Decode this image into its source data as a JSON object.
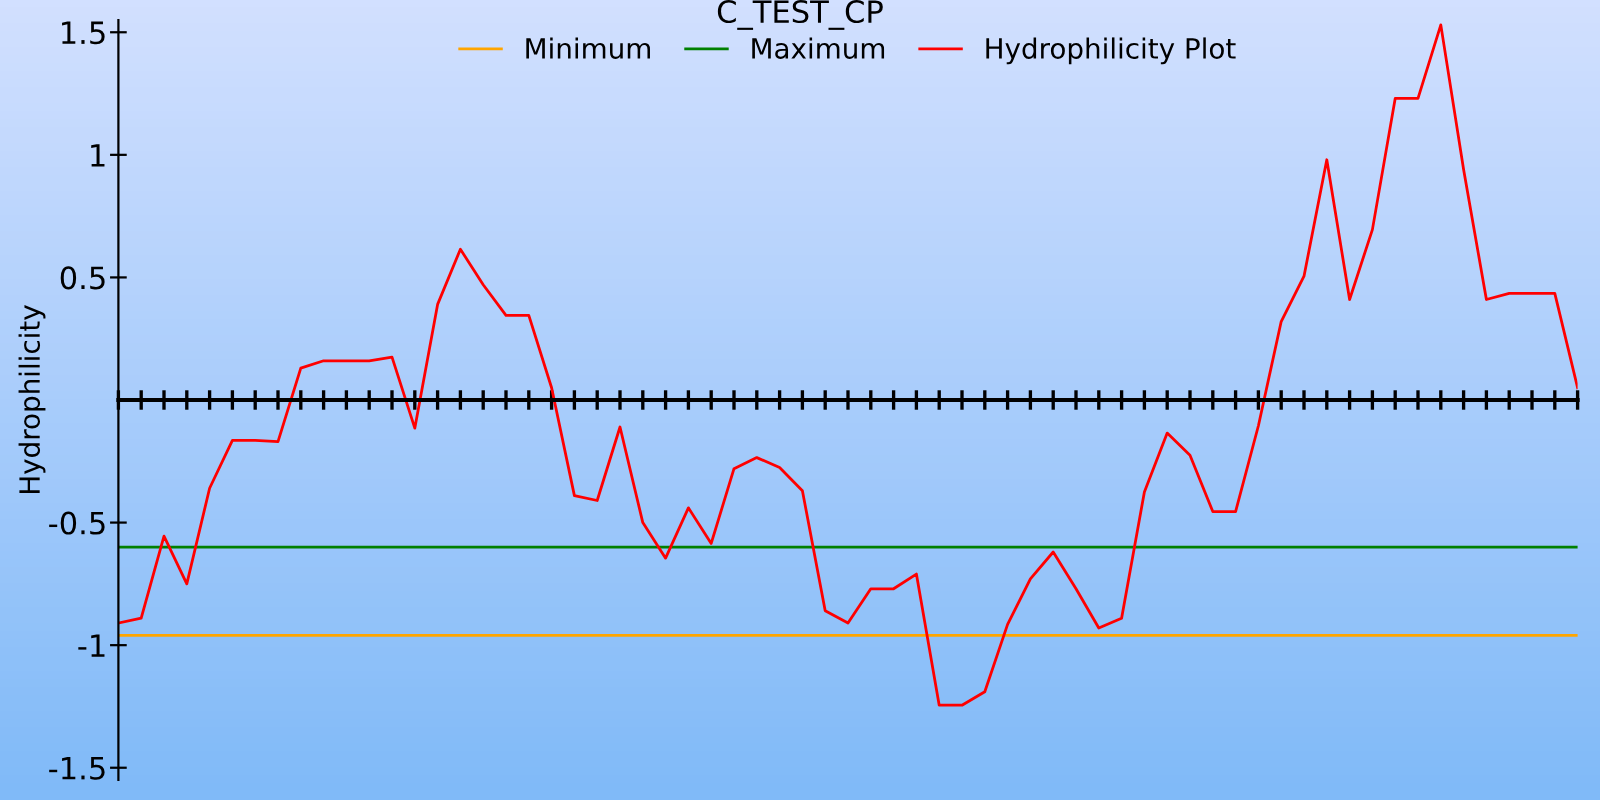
{
  "chart_data": {
    "type": "line",
    "title": "C_TEST_CP",
    "ylabel": "Hydrophilicity",
    "categories": [
      null,
      null,
      null,
      null,
      null,
      null,
      null,
      null,
      null,
      null,
      null,
      null,
      null,
      null,
      null,
      null,
      null,
      null,
      null,
      null,
      null,
      null,
      null,
      null,
      null,
      null,
      null,
      null,
      null,
      null,
      null,
      null,
      null,
      null,
      null,
      null,
      null,
      null,
      null,
      null,
      null,
      null,
      null,
      null,
      null,
      null,
      null,
      null,
      null,
      null,
      null,
      null,
      null,
      null,
      null,
      null,
      null,
      null,
      null,
      null,
      null,
      null,
      null,
      null,
      null
    ],
    "series": [
      {
        "name": "Minimum",
        "color": "#ffa500",
        "values": [
          -0.96,
          -0.96,
          -0.96,
          -0.96,
          -0.96,
          -0.96,
          -0.96,
          -0.96,
          -0.96,
          -0.96,
          -0.96,
          -0.96,
          -0.96,
          -0.96,
          -0.96,
          -0.96,
          -0.96,
          -0.96,
          -0.96,
          -0.96,
          -0.96,
          -0.96,
          -0.96,
          -0.96,
          -0.96,
          -0.96,
          -0.96,
          -0.96,
          -0.96,
          -0.96,
          -0.96,
          -0.96,
          -0.96,
          -0.96,
          -0.96,
          -0.96,
          -0.96,
          -0.96,
          -0.96,
          -0.96,
          -0.96,
          -0.96,
          -0.96,
          -0.96,
          -0.96,
          -0.96,
          -0.96,
          -0.96,
          -0.96,
          -0.96,
          -0.96,
          -0.96,
          -0.96,
          -0.96,
          -0.96,
          -0.96,
          -0.96,
          -0.96,
          -0.96,
          -0.96,
          -0.96,
          -0.96,
          -0.96,
          -0.96,
          -0.96
        ]
      },
      {
        "name": "Maximum",
        "color": "#008000",
        "values": [
          -0.6,
          -0.6,
          -0.6,
          -0.6,
          -0.6,
          -0.6,
          -0.6,
          -0.6,
          -0.6,
          -0.6,
          -0.6,
          -0.6,
          -0.6,
          -0.6,
          -0.6,
          -0.6,
          -0.6,
          -0.6,
          -0.6,
          -0.6,
          -0.6,
          -0.6,
          -0.6,
          -0.6,
          -0.6,
          -0.6,
          -0.6,
          -0.6,
          -0.6,
          -0.6,
          -0.6,
          -0.6,
          -0.6,
          -0.6,
          -0.6,
          -0.6,
          -0.6,
          -0.6,
          -0.6,
          -0.6,
          -0.6,
          -0.6,
          -0.6,
          -0.6,
          -0.6,
          -0.6,
          -0.6,
          -0.6,
          -0.6,
          -0.6,
          -0.6,
          -0.6,
          -0.6,
          -0.6,
          -0.6,
          -0.6,
          -0.6,
          -0.6,
          -0.6,
          -0.6,
          -0.6,
          -0.6,
          -0.6,
          -0.6,
          -0.6
        ]
      },
      {
        "name": "Hydrophilicity Plot",
        "color": "#ff0000",
        "values": [
          -0.91,
          -0.89,
          -0.555,
          -0.75,
          -0.36,
          -0.165,
          -0.165,
          -0.17,
          0.13,
          0.16,
          0.16,
          0.16,
          0.175,
          -0.115,
          0.39,
          0.615,
          0.47,
          0.345,
          0.345,
          0.05,
          -0.39,
          -0.41,
          -0.11,
          -0.5,
          -0.645,
          -0.44,
          -0.585,
          -0.28,
          -0.235,
          -0.275,
          -0.37,
          -0.86,
          -0.91,
          -0.77,
          -0.77,
          -0.71,
          -1.245,
          -1.245,
          -1.19,
          -0.915,
          -0.73,
          -0.62,
          -0.77,
          -0.93,
          -0.89,
          -0.375,
          -0.135,
          -0.225,
          -0.455,
          -0.455,
          -0.105,
          0.32,
          0.505,
          0.98,
          0.41,
          0.695,
          1.23,
          1.23,
          1.53,
          0.94,
          0.41,
          0.435,
          0.435,
          0.435,
          0.05
        ]
      }
    ],
    "ylim": [
      -1.55,
      1.55
    ],
    "yticks": [
      {
        "value": -1.5,
        "label": "-1.5"
      },
      {
        "value": -1,
        "label": "-1"
      },
      {
        "value": -0.5,
        "label": "-0.5"
      },
      0.5,
      1,
      1.5
    ],
    "tick_labels": "y",
    "legend": "top",
    "grid": false,
    "marker": "none",
    "line_style": "solid"
  }
}
